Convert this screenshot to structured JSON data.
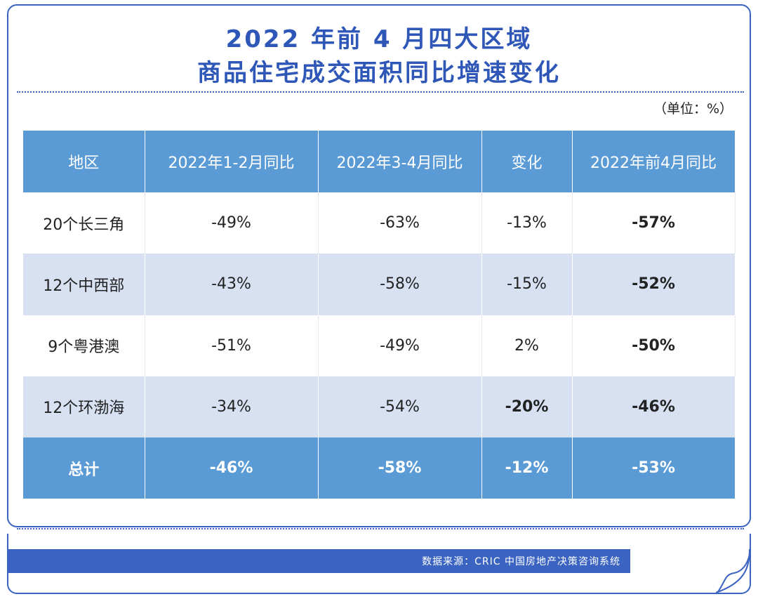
{
  "title": {
    "line1": "2022 年前 4 月四大区域",
    "line2": "商品住宅成交面积同比增速变化"
  },
  "unit": "（单位：%）",
  "table": {
    "headers": [
      "地区",
      "2022年1-2月同比",
      "2022年3-4月同比",
      "变化",
      "2022年前4月同比"
    ],
    "rows": [
      [
        "20个长三角",
        "-49%",
        "-63%",
        "-13%",
        "-57%"
      ],
      [
        "12个中西部",
        "-43%",
        "-58%",
        "-15%",
        "-52%"
      ],
      [
        "9个粤港澳",
        "-51%",
        "-49%",
        "2%",
        "-50%"
      ],
      [
        "12个环渤海",
        "-34%",
        "-54%",
        "-20%",
        "-46%"
      ]
    ],
    "total": [
      "总计",
      "-46%",
      "-58%",
      "-12%",
      "-53%"
    ]
  },
  "source": "数据来源：CRIC 中国房地产决策咨询系统",
  "colors": {
    "title": "#2f57b8",
    "header_bg": "#5b9bd5",
    "stripe_bg": "#d7e1f2",
    "frame": "#3a63c2"
  }
}
